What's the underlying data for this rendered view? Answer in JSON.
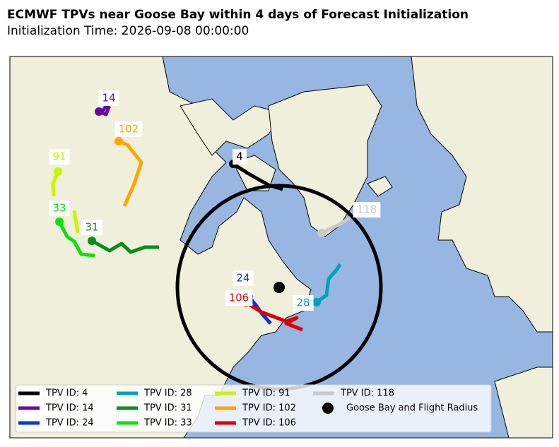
{
  "title": "ECMWF TPVs near Goose Bay within 4 days of Forecast Initialization",
  "subtitle": "Initialization Time: 2026-09-08 00:00:00",
  "tracks": [
    {
      "label": "4",
      "legend": "TPV ID: 4",
      "color": "#000000"
    },
    {
      "label": "14",
      "legend": "TPV ID: 14",
      "color": "#6a0a9e"
    },
    {
      "label": "24",
      "legend": "TPV ID: 24",
      "color": "#0a36d6"
    },
    {
      "label": "28",
      "legend": "TPV ID: 28",
      "color": "#00a3b5"
    },
    {
      "label": "31",
      "legend": "TPV ID: 31",
      "color": "#078f1b"
    },
    {
      "label": "33",
      "legend": "TPV ID: 33",
      "color": "#0de00d"
    },
    {
      "label": "91",
      "legend": "TPV ID: 91",
      "color": "#c8f500"
    },
    {
      "label": "102",
      "legend": "TPV ID: 102",
      "color": "#ffa500"
    },
    {
      "label": "106",
      "legend": "TPV ID: 106",
      "color": "#e00000"
    },
    {
      "label": "118",
      "legend": "TPV ID: 118",
      "color": "#c8c8c8"
    }
  ],
  "station": {
    "legend": "Goose Bay and Flight Radius",
    "color": "#000000"
  }
}
